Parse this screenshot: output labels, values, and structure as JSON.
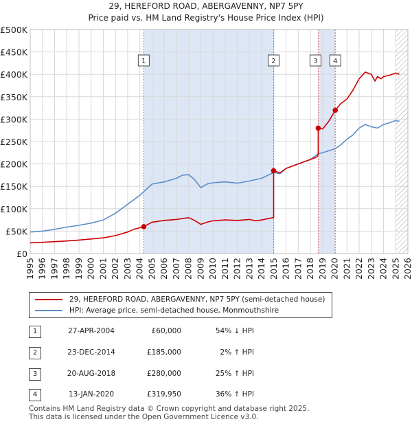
{
  "title_line1": "29, HEREFORD ROAD, ABERGAVENNY, NP7 5PY",
  "title_line2": "Price paid vs. HM Land Registry's House Price Index (HPI)",
  "colors": {
    "property": "#cc0000",
    "hpi": "#5b8ec9",
    "shade": "#dde6f5",
    "grid": "#d8d8d8",
    "marker_line": "#e06060"
  },
  "legend": {
    "property_label": "29, HEREFORD ROAD, ABERGAVENNY, NP7 5PY (semi-detached house)",
    "hpi_label": "HPI: Average price, semi-detached house, Monmouthshire"
  },
  "transactions": [
    {
      "num": "1",
      "date": "27-APR-2004",
      "price": "£60,000",
      "hpi": "54% ↓ HPI"
    },
    {
      "num": "2",
      "date": "23-DEC-2014",
      "price": "£185,000",
      "hpi": "2% ↑ HPI"
    },
    {
      "num": "3",
      "date": "20-AUG-2018",
      "price": "£280,000",
      "hpi": "25% ↑ HPI"
    },
    {
      "num": "4",
      "date": "13-JAN-2020",
      "price": "£319,950",
      "hpi": "36% ↑ HPI"
    }
  ],
  "footer_line1": "Contains HM Land Registry data © Crown copyright and database right 2025.",
  "footer_line2": "This data is licensed under the Open Government Licence v3.0.",
  "chart_data": {
    "type": "line",
    "title": "29, HEREFORD ROAD, ABERGAVENNY, NP7 5PY — Price paid vs. HM Land Registry's House Price Index (HPI)",
    "xlim": [
      1995,
      2026
    ],
    "ylim": [
      0,
      500000
    ],
    "x_ticks": [
      "1995",
      "1996",
      "1997",
      "1998",
      "1999",
      "2000",
      "2001",
      "2002",
      "2003",
      "2004",
      "2005",
      "2006",
      "2007",
      "2008",
      "2009",
      "2010",
      "2011",
      "2012",
      "2013",
      "2014",
      "2015",
      "2016",
      "2017",
      "2018",
      "2019",
      "2020",
      "2021",
      "2022",
      "2023",
      "2024",
      "2025",
      "2026"
    ],
    "y_ticks": [
      {
        "value": 0,
        "label": "£0"
      },
      {
        "value": 50000,
        "label": "£50K"
      },
      {
        "value": 100000,
        "label": "£100K"
      },
      {
        "value": 150000,
        "label": "£150K"
      },
      {
        "value": 200000,
        "label": "£200K"
      },
      {
        "value": 250000,
        "label": "£250K"
      },
      {
        "value": 300000,
        "label": "£300K"
      },
      {
        "value": 350000,
        "label": "£350K"
      },
      {
        "value": 400000,
        "label": "£400K"
      },
      {
        "value": 450000,
        "label": "£450K"
      },
      {
        "value": 500000,
        "label": "£500K"
      }
    ],
    "shaded_ranges": [
      [
        2004.32,
        2014.98
      ],
      [
        2018.64,
        2020.04
      ]
    ],
    "hatch_from": 2025.0,
    "sales": [
      {
        "label": "1",
        "x": 2004.32,
        "y": 60000
      },
      {
        "label": "2",
        "x": 2014.98,
        "y": 185000
      },
      {
        "label": "3",
        "x": 2018.64,
        "y": 280000
      },
      {
        "label": "4",
        "x": 2020.04,
        "y": 319950
      }
    ],
    "series": [
      {
        "name": "29, HEREFORD ROAD, ABERGAVENNY, NP7 5PY (semi-detached house)",
        "x": [
          1995.0,
          1996.0,
          1997.0,
          1998.0,
          1999.0,
          2000.0,
          2001.0,
          2002.0,
          2003.0,
          2003.5,
          2004.32,
          2004.32,
          2005.0,
          2006.0,
          2007.0,
          2007.5,
          2008.0,
          2008.5,
          2009.0,
          2009.5,
          2010.0,
          2011.0,
          2012.0,
          2013.0,
          2013.5,
          2014.0,
          2014.9,
          2014.98,
          2014.98,
          2015.5,
          2016.0,
          2017.0,
          2017.5,
          2018.0,
          2018.5,
          2018.64,
          2018.64,
          2019.0,
          2019.5,
          2020.04,
          2020.04,
          2020.5,
          2021.0,
          2021.5,
          2022.0,
          2022.5,
          2023.0,
          2023.3,
          2023.5,
          2023.8,
          2024.0,
          2024.5,
          2025.0,
          2025.3
        ],
        "values": [
          24000,
          25000,
          26500,
          28000,
          30000,
          32500,
          35000,
          40000,
          48000,
          54000,
          60000,
          60000,
          70000,
          74000,
          76000,
          78000,
          80000,
          74000,
          65000,
          70000,
          73000,
          75000,
          74000,
          76000,
          73000,
          75000,
          80000,
          80000,
          185000,
          180000,
          190000,
          200000,
          205000,
          210000,
          215000,
          220000,
          280000,
          278000,
          295000,
          319950,
          319950,
          335000,
          345000,
          365000,
          390000,
          405000,
          400000,
          385000,
          395000,
          390000,
          395000,
          398000,
          403000,
          400000
        ]
      },
      {
        "name": "HPI: Average price, semi-detached house, Monmouthshire",
        "x": [
          1995.0,
          1996.0,
          1997.0,
          1998.0,
          1999.0,
          2000.0,
          2001.0,
          2002.0,
          2003.0,
          2004.0,
          2005.0,
          2006.0,
          2007.0,
          2007.5,
          2008.0,
          2008.5,
          2009.0,
          2009.5,
          2010.0,
          2011.0,
          2012.0,
          2013.0,
          2014.0,
          2014.98,
          2015.5,
          2016.0,
          2017.0,
          2018.0,
          2018.64,
          2019.0,
          2020.04,
          2020.5,
          2021.0,
          2021.5,
          2022.0,
          2022.5,
          2023.0,
          2023.5,
          2024.0,
          2024.5,
          2025.0,
          2025.3
        ],
        "values": [
          48000,
          50000,
          54000,
          59000,
          63000,
          68000,
          75000,
          90000,
          110000,
          130000,
          155000,
          160000,
          168000,
          175000,
          176000,
          165000,
          147000,
          155000,
          158000,
          160000,
          157000,
          162000,
          168000,
          181000,
          178000,
          190000,
          200000,
          210000,
          223000,
          225000,
          234000,
          243000,
          255000,
          265000,
          280000,
          288000,
          283000,
          280000,
          288000,
          292000,
          297000,
          295000
        ]
      }
    ]
  }
}
